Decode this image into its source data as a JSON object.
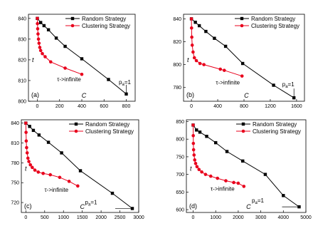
{
  "colors": {
    "random": "#000000",
    "clustering": "#e8001c",
    "axis": "#000000"
  },
  "chart_data": [
    {
      "type": "line",
      "panel_label": "(a)",
      "xlabel": "C",
      "ylabel": "t",
      "xlim": [
        -80,
        880
      ],
      "ylim": [
        800,
        842
      ],
      "xticks": [
        0,
        200,
        400,
        600,
        800
      ],
      "yticks": [
        800,
        810,
        820,
        830,
        840
      ],
      "legend": "top-right",
      "series": [
        {
          "name": "Random Strategy",
          "marker": "square",
          "x": [
            0,
            30,
            60,
            100,
            170,
            250,
            400,
            640,
            800
          ],
          "y": [
            840,
            838,
            836.5,
            834.5,
            830.5,
            826.5,
            820.5,
            810.5,
            803.5
          ]
        },
        {
          "name": "Clustering Strategy",
          "marker": "circle",
          "x": [
            0,
            1,
            3,
            6,
            10,
            15,
            22,
            30,
            45,
            70,
            120,
            250,
            400
          ],
          "y": [
            840,
            837.5,
            835,
            832.5,
            830,
            828,
            826,
            824.5,
            823,
            821.5,
            819,
            816,
            813
          ]
        }
      ],
      "annotations": [
        {
          "text": "τ->infinite",
          "x": 400,
          "y": 813
        },
        {
          "text": "p_a=1",
          "x": 800,
          "y": 803.5
        }
      ]
    },
    {
      "type": "line",
      "panel_label": "(b)",
      "xlabel": "C",
      "ylabel": "t",
      "xlim": [
        -120,
        1720
      ],
      "ylim": [
        768,
        844
      ],
      "xticks": [
        0,
        400,
        800,
        1200,
        1600
      ],
      "yticks": [
        780,
        800,
        820,
        840
      ],
      "legend": "top-right",
      "series": [
        {
          "name": "Random Strategy",
          "marker": "square",
          "x": [
            0,
            60,
            120,
            220,
            350,
            520,
            780,
            1250,
            1560
          ],
          "y": [
            840,
            837,
            834,
            829,
            823,
            816,
            801,
            782,
            771
          ]
        },
        {
          "name": "Clustering Strategy",
          "marker": "circle",
          "x": [
            0,
            2,
            6,
            12,
            25,
            45,
            75,
            130,
            190,
            440,
            500,
            770
          ],
          "y": [
            840,
            832,
            824,
            817,
            811,
            806,
            803.5,
            801,
            800,
            796,
            795,
            790
          ]
        }
      ],
      "annotations": [
        {
          "text": "τ->infinite",
          "x": 770,
          "y": 790
        },
        {
          "text": "p_a=1",
          "x": 1560,
          "y": 771
        }
      ]
    },
    {
      "type": "line",
      "panel_label": "(c)",
      "xlabel": "C",
      "ylabel": "t",
      "xlim": [
        -120,
        3000
      ],
      "ylim": [
        705,
        845
      ],
      "xticks": [
        0,
        500,
        1000,
        1500,
        2000,
        2500,
        3000
      ],
      "yticks": [
        720,
        750,
        780,
        810,
        840
      ],
      "legend": "top-right",
      "series": [
        {
          "name": "Random Strategy",
          "marker": "square",
          "x": [
            0,
            100,
            200,
            350,
            600,
            950,
            1450,
            2300,
            2830
          ],
          "y": [
            840,
            835,
            829,
            822,
            811,
            795,
            768,
            734,
            711
          ]
        },
        {
          "name": "Clustering Strategy",
          "marker": "circle",
          "x": [
            0,
            5,
            10,
            20,
            35,
            55,
            80,
            120,
            170,
            240,
            330,
            460,
            650,
            900,
            1150,
            1380
          ],
          "y": [
            840,
            826,
            813,
            803,
            795,
            787,
            782,
            777,
            773,
            769,
            766,
            764,
            762,
            758,
            752,
            745
          ]
        }
      ],
      "annotations": [
        {
          "text": "τ->infinite",
          "x": 1380,
          "y": 745
        },
        {
          "text": "p_a=1",
          "x": 2830,
          "y": 711
        }
      ]
    },
    {
      "type": "line",
      "panel_label": "(d)",
      "xlabel": "C",
      "ylabel": "t",
      "xlim": [
        -300,
        5000
      ],
      "ylim": [
        592,
        855
      ],
      "xticks": [
        0,
        1000,
        2000,
        3000,
        4000,
        5000
      ],
      "yticks": [
        600,
        650,
        700,
        750,
        800,
        850
      ],
      "legend": "top-right",
      "series": [
        {
          "name": "Random Strategy",
          "marker": "square",
          "x": [
            0,
            150,
            300,
            600,
            1000,
            1500,
            2200,
            3200,
            4000,
            4700
          ],
          "y": [
            840,
            826,
            820,
            808,
            790,
            765,
            738,
            700,
            640,
            608
          ]
        },
        {
          "name": "Clustering Strategy",
          "marker": "circle",
          "x": [
            0,
            5,
            10,
            20,
            40,
            70,
            110,
            170,
            260,
            380,
            550,
            780,
            1080,
            1450,
            1800,
            2000,
            2250
          ],
          "y": [
            840,
            810,
            788,
            770,
            755,
            741,
            731,
            722,
            714,
            707,
            700,
            695,
            689,
            682,
            677,
            675,
            666
          ]
        }
      ],
      "annotations": [
        {
          "text": "τ->infinite",
          "x": 2250,
          "y": 666
        },
        {
          "text": "p_a=1",
          "x": 4700,
          "y": 608
        }
      ]
    }
  ]
}
